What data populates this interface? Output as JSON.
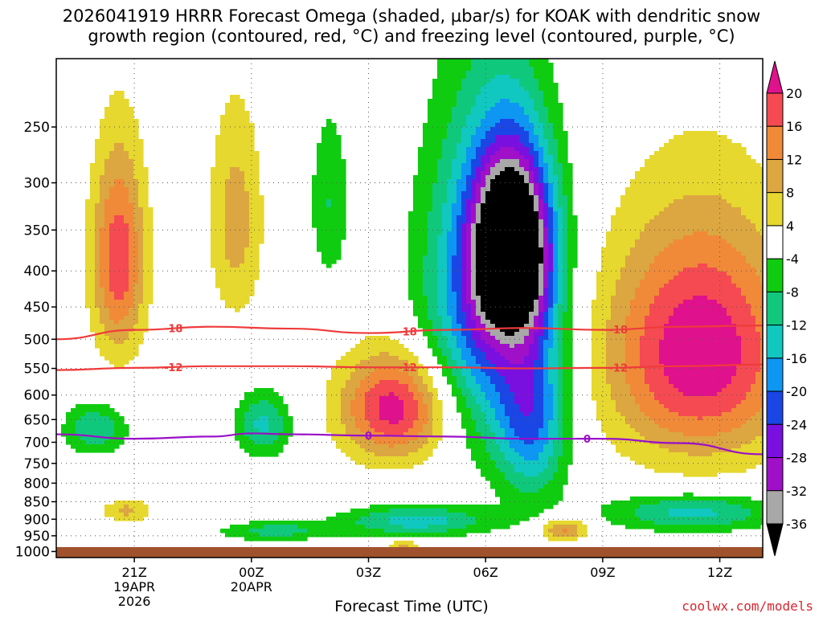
{
  "title_line1": "2026041919 HRRR Forecast Omega (shaded, µbar/s) for KOAK with dendritic snow",
  "title_line2": "growth region (contoured, red, °C) and freezing level (contoured, purple, °C)",
  "credit": "coolwx.com/models",
  "chart_data": {
    "type": "heatmap",
    "xlabel": "Forecast Time (UTC)",
    "ylabel": "",
    "x_range_hours": [
      -2.0,
      16.1
    ],
    "x_ticks": [
      {
        "label": "21Z",
        "h": 0,
        "sub": [
          "19APR",
          "2026"
        ]
      },
      {
        "label": "00Z",
        "h": 3,
        "sub": [
          "20APR"
        ]
      },
      {
        "label": "03Z",
        "h": 6,
        "sub": []
      },
      {
        "label": "06Z",
        "h": 9,
        "sub": []
      },
      {
        "label": "09Z",
        "h": 12,
        "sub": []
      },
      {
        "label": "12Z",
        "h": 15,
        "sub": []
      }
    ],
    "y_axis": {
      "scale": "log-pressure",
      "units": "hPa",
      "top": 200,
      "bottom": 1020,
      "ticks": [
        250,
        300,
        350,
        400,
        450,
        500,
        550,
        600,
        650,
        700,
        750,
        800,
        850,
        900,
        950,
        1000
      ]
    },
    "grid": true,
    "colorbar": {
      "ticks": [
        20,
        16,
        12,
        8,
        4,
        -4,
        -8,
        -12,
        -16,
        -20,
        -24,
        -28,
        -32,
        -36
      ],
      "bins": [
        {
          "min": 20,
          "max": null,
          "color": "#e0118c"
        },
        {
          "min": 16,
          "max": 20,
          "color": "#f54a52"
        },
        {
          "min": 12,
          "max": 16,
          "color": "#f08a38"
        },
        {
          "min": 8,
          "max": 12,
          "color": "#dca640"
        },
        {
          "min": 4,
          "max": 8,
          "color": "#e6d82e"
        },
        {
          "min": -4,
          "max": 4,
          "color": "#ffffff"
        },
        {
          "min": -8,
          "max": -4,
          "color": "#10cc10"
        },
        {
          "min": -12,
          "max": -8,
          "color": "#10c87c"
        },
        {
          "min": -16,
          "max": -12,
          "color": "#10c8c0"
        },
        {
          "min": -20,
          "max": -16,
          "color": "#0d96f2"
        },
        {
          "min": -24,
          "max": -20,
          "color": "#1a46e6"
        },
        {
          "min": -28,
          "max": -24,
          "color": "#7a10e0"
        },
        {
          "min": -32,
          "max": -28,
          "color": "#a010c8"
        },
        {
          "min": -36,
          "max": -32,
          "color": "#a8a8a8"
        },
        {
          "min": null,
          "max": -36,
          "color": "#000000"
        }
      ]
    },
    "omega_features": [
      {
        "name": "rising core 06Z",
        "h": 9.7,
        "p": 370,
        "dh": 1.0,
        "dp": 110,
        "peak": -44
      },
      {
        "name": "rising band",
        "h": 9.0,
        "p": 450,
        "dh": 1.6,
        "dp": 230,
        "peak": -22
      },
      {
        "name": "rising column",
        "h": 10.2,
        "p": 650,
        "dh": 0.9,
        "dp": 180,
        "peak": -18
      },
      {
        "name": "rising low 03Z",
        "h": 7.2,
        "p": 905,
        "dh": 1.9,
        "dp": 45,
        "peak": -14
      },
      {
        "name": "rising low 00Z",
        "h": 3.6,
        "p": 935,
        "dh": 1.4,
        "dp": 30,
        "peak": -10
      },
      {
        "name": "rising low 09Z",
        "h": 14.3,
        "p": 880,
        "dh": 2.2,
        "dp": 55,
        "peak": -14
      },
      {
        "name": "rising 20Z",
        "h": -1.0,
        "p": 670,
        "dh": 0.8,
        "dp": 55,
        "peak": -12
      },
      {
        "name": "rising 01Z",
        "h": 3.3,
        "p": 660,
        "dh": 0.7,
        "dp": 70,
        "peak": -13
      },
      {
        "name": "rising upper 02Z",
        "h": 5.0,
        "p": 320,
        "dh": 0.5,
        "dp": 90,
        "peak": -8
      },
      {
        "name": "sinking 21Z",
        "h": -0.4,
        "p": 385,
        "dh": 0.7,
        "dp": 130,
        "peak": 19
      },
      {
        "name": "sinking 00Z",
        "h": 2.6,
        "p": 340,
        "dh": 0.7,
        "dp": 120,
        "peak": 10
      },
      {
        "name": "sinking 04Z",
        "h": 6.7,
        "p": 625,
        "dh": 1.4,
        "dp": 110,
        "peak": 23
      },
      {
        "name": "sinking 10Z",
        "h": 14.5,
        "p": 520,
        "dh": 2.4,
        "dp": 200,
        "peak": 24
      },
      {
        "name": "sinking 08Z",
        "h": 11.0,
        "p": 930,
        "dh": 0.6,
        "dp": 35,
        "peak": 14
      },
      {
        "name": "sinking 22Z",
        "h": -0.2,
        "p": 875,
        "dh": 0.6,
        "dp": 35,
        "peak": 9
      },
      {
        "name": "sinking 04Z low",
        "h": 6.9,
        "p": 985,
        "dh": 0.5,
        "dp": 20,
        "peak": 10
      }
    ],
    "contours": [
      {
        "label": "-18",
        "color": "#ef3b3b",
        "h": [
          -2,
          0,
          2,
          4,
          6,
          8,
          10,
          12,
          14,
          16.1
        ],
        "p": [
          500,
          485,
          480,
          483,
          490,
          485,
          482,
          485,
          480,
          478
        ]
      },
      {
        "label": "-12",
        "color": "#ef3b3b",
        "h": [
          -2,
          0,
          2,
          4,
          6,
          8,
          10,
          12,
          14,
          16.1
        ],
        "p": [
          553,
          549,
          546,
          546,
          548,
          548,
          550,
          549,
          546,
          543
        ]
      },
      {
        "label": "0",
        "color": "#9a10c8",
        "h": [
          -2,
          0,
          2,
          3,
          4,
          6,
          8,
          10,
          12,
          14,
          16.1
        ],
        "p": [
          682,
          692,
          687,
          680,
          682,
          685,
          687,
          692,
          692,
          702,
          728
        ]
      }
    ]
  }
}
